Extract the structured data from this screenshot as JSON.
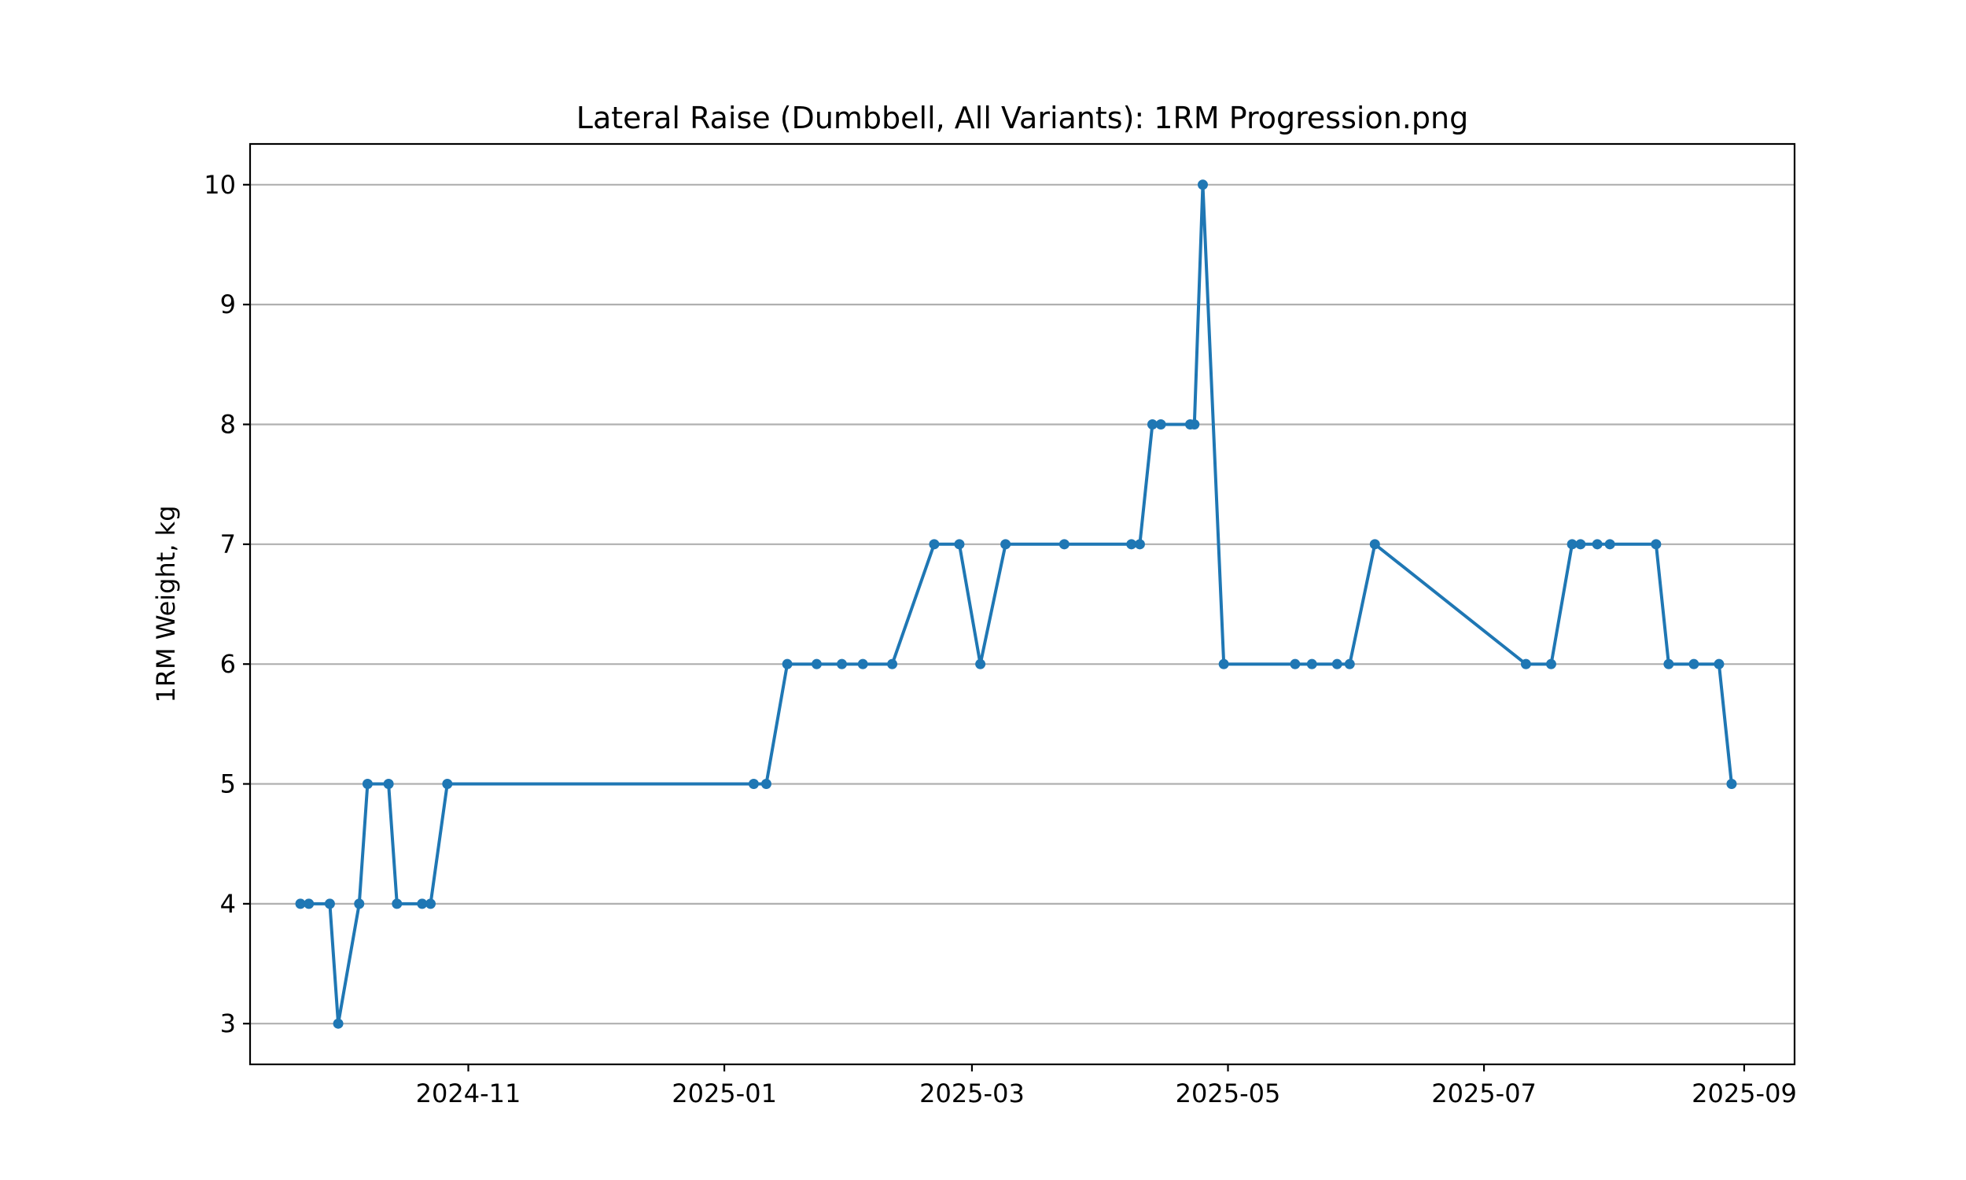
{
  "chart_data": {
    "type": "line",
    "title": "Lateral Raise (Dumbbell, All Variants): 1RM Progression.png",
    "xlabel": "",
    "ylabel": "1RM Weight, kg",
    "x_type": "date",
    "x_ticks": [
      "2024-11",
      "2025-01",
      "2025-03",
      "2025-05",
      "2025-07",
      "2025-09"
    ],
    "y_ticks": [
      3,
      4,
      5,
      6,
      7,
      8,
      9,
      10
    ],
    "xlim": [
      "2024-09-10",
      "2025-09-13"
    ],
    "ylim": [
      2.66,
      10.34
    ],
    "grid": "horizontal",
    "legend": "none",
    "line_color": "#1f77b4",
    "series": [
      {
        "x": [
          "2024-09-22",
          "2024-09-24",
          "2024-09-29",
          "2024-10-01",
          "2024-10-06",
          "2024-10-08",
          "2024-10-13",
          "2024-10-15",
          "2024-10-21",
          "2024-10-23",
          "2024-10-27",
          "2025-01-08",
          "2025-01-11",
          "2025-01-16",
          "2025-01-23",
          "2025-01-29",
          "2025-02-03",
          "2025-02-10",
          "2025-02-20",
          "2025-02-26",
          "2025-03-03",
          "2025-03-09",
          "2025-03-23",
          "2025-04-08",
          "2025-04-10",
          "2025-04-13",
          "2025-04-15",
          "2025-04-22",
          "2025-04-23",
          "2025-04-25",
          "2025-04-30",
          "2025-05-17",
          "2025-05-21",
          "2025-05-27",
          "2025-05-30",
          "2025-06-05",
          "2025-07-11",
          "2025-07-17",
          "2025-07-22",
          "2025-07-24",
          "2025-07-28",
          "2025-07-31",
          "2025-08-11",
          "2025-08-14",
          "2025-08-20",
          "2025-08-26",
          "2025-08-29"
        ],
        "values": [
          4,
          4,
          4,
          3,
          4,
          5,
          5,
          4,
          4,
          4,
          5,
          5,
          5,
          6,
          6,
          6,
          6,
          6,
          7,
          7,
          6,
          7,
          7,
          7,
          7,
          8,
          8,
          8,
          8,
          10,
          6,
          6,
          6,
          6,
          6,
          7,
          6,
          6,
          7,
          7,
          7,
          7,
          7,
          6,
          6,
          6,
          5
        ]
      }
    ]
  }
}
